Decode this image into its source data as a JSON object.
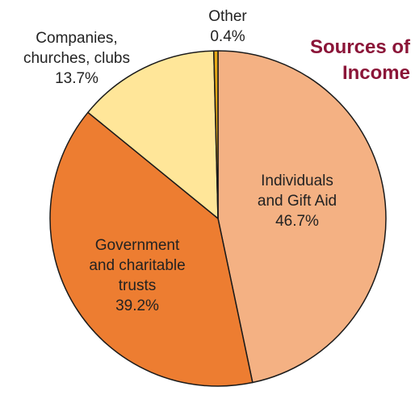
{
  "chart_data": {
    "type": "pie",
    "title": [
      "Sources of",
      "Income"
    ],
    "title_color": "#8B1538",
    "start_direction": "clockwise from top",
    "slices": [
      {
        "label": [
          "Individuals",
          "and Gift Aid"
        ],
        "value_text": "46.7%",
        "value": 46.7,
        "color": "#F4B183"
      },
      {
        "label": [
          "Government",
          "and charitable",
          "trusts"
        ],
        "value_text": "39.2%",
        "value": 39.2,
        "color": "#ED7D31"
      },
      {
        "label": [
          "Companies,",
          "churches, clubs"
        ],
        "value_text": "13.7%",
        "value": 13.7,
        "color": "#FFE699"
      },
      {
        "label": [
          "Other"
        ],
        "value_text": "0.4%",
        "value": 0.4,
        "color": "#E6A817"
      }
    ]
  }
}
